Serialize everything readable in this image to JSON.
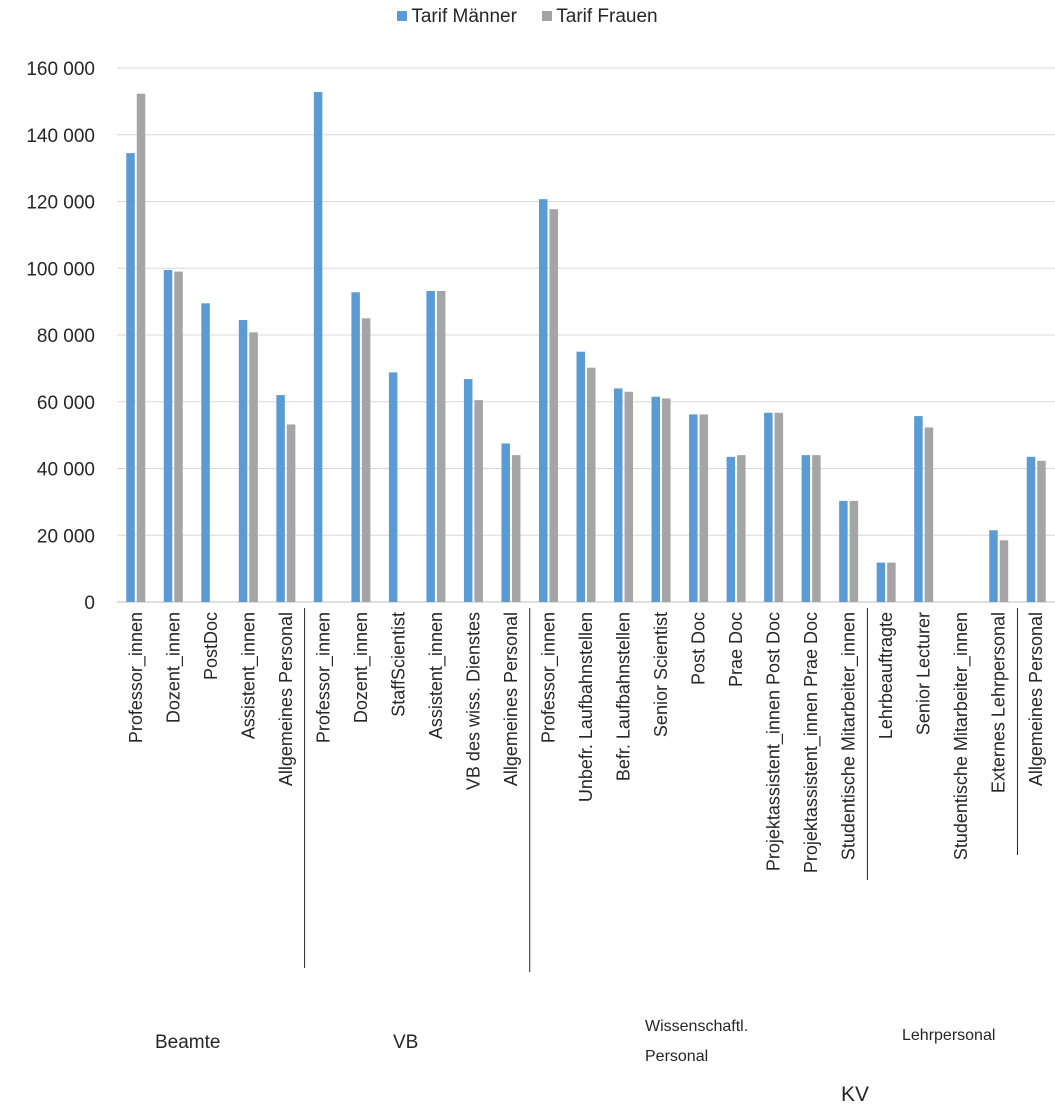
{
  "chart_data": {
    "type": "bar",
    "legend_position": "top",
    "grid": true,
    "ylim": [
      0,
      160000
    ],
    "yticks": [
      "0",
      "20 000",
      "40 000",
      "60 000",
      "80 000",
      "100 000",
      "120 000",
      "140 000",
      "160 000"
    ],
    "categories": [
      "Professor_innen",
      "Dozent_innen",
      "PostDoc",
      "Assistent_innen",
      "Allgemeines Personal",
      "Professor_innen",
      "Dozent_innen",
      "StaffScientist",
      "Assistent_innen",
      "VB des wiss. Dienstes",
      "Allgemeines Personal",
      "Professor_innen",
      "Unbefr. Laufbahnstellen",
      "Befr. Laufbahnstellen",
      "Senior Scientist",
      "Post Doc",
      "Prae Doc",
      "Projektassistent_innen Post Doc",
      "Projektassistent_innen Prae Doc",
      "Studentische Mitarbeiter_innen",
      "Lehrbeauftragte",
      "Senior Lecturer",
      "Studentische Mitarbeiter_innen",
      "Externes Lehrpersonal",
      "Allgemeines Personal"
    ],
    "series": [
      {
        "name": "Tarif Männer",
        "color": "#5b9bd5",
        "values": [
          134500,
          99500,
          89500,
          84500,
          62000,
          152800,
          92800,
          68800,
          93200,
          66800,
          47500,
          120700,
          75000,
          64000,
          61500,
          56200,
          43500,
          56700,
          44000,
          30300,
          11800,
          55700,
          null,
          21500,
          43500
        ]
      },
      {
        "name": "Tarif Frauen",
        "color": "#a5a5a5",
        "values": [
          152300,
          99000,
          null,
          80800,
          53200,
          null,
          85000,
          null,
          93200,
          60500,
          44000,
          117700,
          70200,
          63000,
          61000,
          56200,
          44000,
          56700,
          44000,
          30300,
          11800,
          52300,
          null,
          18500,
          42300
        ]
      }
    ],
    "groups": {
      "beamte": "Beamte",
      "vb": "VB",
      "wiss_line1": "Wissenschaftl.",
      "wiss_line2": "Personal",
      "lehr": "Lehrpersonal",
      "kv": "KV"
    }
  }
}
